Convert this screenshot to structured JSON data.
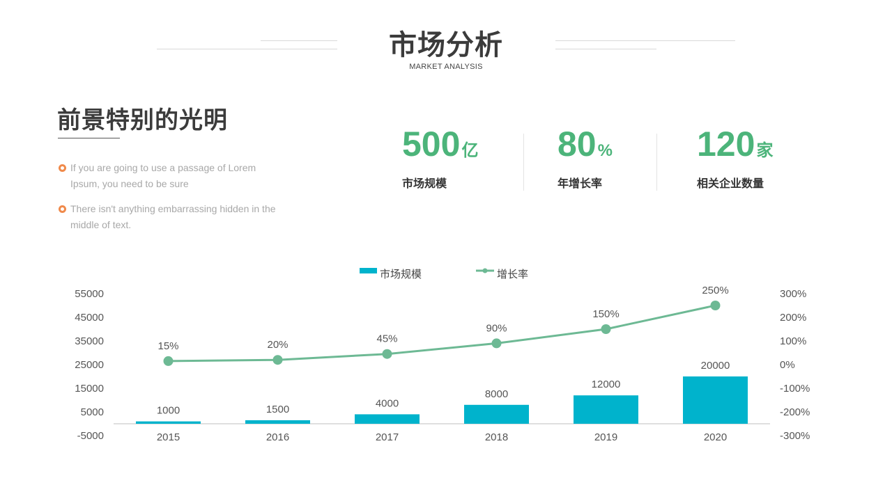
{
  "header": {
    "title": "市场分析",
    "subtitle": "MARKET ANALYSIS"
  },
  "left": {
    "heading": "前景特别的光明",
    "bullets": [
      {
        "line1": "If you are going to use a passage of Lorem",
        "line2": "Ipsum, you need to be sure"
      },
      {
        "line1": "There isn't anything embarrassing hidden in the",
        "line2": "middle of text."
      }
    ]
  },
  "stats": [
    {
      "value": "500",
      "unit": "亿",
      "label": "市场规模"
    },
    {
      "value": "80",
      "unit": "%",
      "label": "年增长率"
    },
    {
      "value": "120",
      "unit": "家",
      "label": "相关企业数量"
    }
  ],
  "colors": {
    "accent_green": "#4cb47a",
    "bar": "#00b3cc",
    "line": "#6db994",
    "bullet": "#f08a4b"
  },
  "chart_data": {
    "type": "bar+line",
    "categories": [
      "2015",
      "2016",
      "2017",
      "2018",
      "2019",
      "2020"
    ],
    "series": [
      {
        "name": "市场规模",
        "type": "bar",
        "axis": "left",
        "values": [
          1000,
          1500,
          4000,
          8000,
          12000,
          20000
        ],
        "labels": [
          "1000",
          "1500",
          "4000",
          "8000",
          "12000",
          "20000"
        ]
      },
      {
        "name": "增长率",
        "type": "line",
        "axis": "right",
        "values": [
          15,
          20,
          45,
          90,
          150,
          250
        ],
        "labels": [
          "15%",
          "20%",
          "45%",
          "90%",
          "150%",
          "250%"
        ]
      }
    ],
    "left_axis": {
      "ticks": [
        "55000",
        "45000",
        "35000",
        "25000",
        "15000",
        "5000",
        "-5000"
      ],
      "min": -5000,
      "max": 55000
    },
    "right_axis": {
      "ticks": [
        "300%",
        "200%",
        "100%",
        "0%",
        "-100%",
        "-200%",
        "-300%"
      ],
      "min": -300,
      "max": 300
    },
    "legend_position": "top-center",
    "grid": false
  }
}
